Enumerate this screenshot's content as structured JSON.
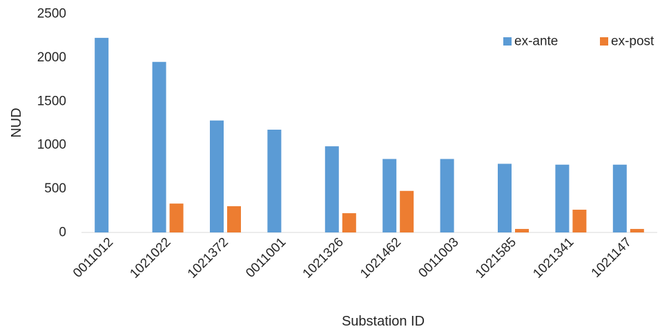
{
  "chart_data": {
    "type": "bar",
    "xlabel": "Substation ID",
    "ylabel": "NUD",
    "ylim": [
      0,
      2500
    ],
    "yticks": [
      0,
      500,
      1000,
      1500,
      2000,
      2500
    ],
    "grid": false,
    "legend_position": "top-right",
    "categories": [
      "0011012",
      "1021022",
      "1021372",
      "0011001",
      "1021326",
      "1021462",
      "0011003",
      "1021585",
      "1021341",
      "1021147"
    ],
    "series": [
      {
        "name": "ex-ante",
        "color": "#5b9bd5",
        "values": [
          2225,
          1950,
          1280,
          1175,
          985,
          840,
          840,
          785,
          775,
          775
        ]
      },
      {
        "name": "ex-post",
        "color": "#ed7d31",
        "values": [
          0,
          330,
          300,
          0,
          220,
          475,
          0,
          40,
          260,
          40
        ]
      }
    ]
  }
}
